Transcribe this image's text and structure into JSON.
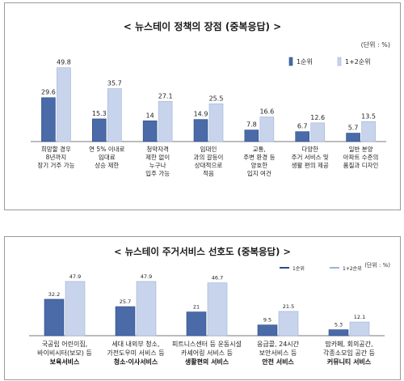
{
  "chart_data": [
    {
      "type": "bar",
      "title": "< 뉴스테이 정책의 장점 (중복응답) >",
      "unit": "(단위 : %)",
      "categories": [
        [
          "희망할 경우",
          "8년까지",
          "장기 거주 가능"
        ],
        [
          "연 5% 이내로",
          "임대료",
          "상승 제한"
        ],
        [
          "청약자격",
          "제한 없이",
          "누구나",
          "입주 가능"
        ],
        [
          "임대인",
          "과의 갈등이",
          "상대적으로",
          "적음"
        ],
        [
          "교통,",
          "주변 환경 등",
          "양호한",
          "입지 여건"
        ],
        [
          "다양한",
          "주거 서비스 및",
          "생활 편의 제공"
        ],
        [
          "일반 분양",
          "아파트 수준의",
          "품질과 디자인"
        ]
      ],
      "series": [
        {
          "name": "1순위",
          "values": [
            29.6,
            15.3,
            14.0,
            14.9,
            7.8,
            6.7,
            5.7
          ]
        },
        {
          "name": "1+2순위",
          "values": [
            49.8,
            35.7,
            27.1,
            25.5,
            16.6,
            12.6,
            13.5
          ]
        }
      ],
      "ylim": [
        0,
        60
      ],
      "legend": "top-right",
      "grid": false
    },
    {
      "type": "bar",
      "title": "< 뉴스테이 주거서비스 선호도 (중복응답) >",
      "unit": "(단위 : %)",
      "categories": [
        {
          "lines": [
            "국공립 어린이집,",
            "바이비시터(보모) 등"
          ],
          "bold": "보육서비스"
        },
        {
          "lines": [
            "세대 내외부 청소,",
            "가전도우미 서비스 등"
          ],
          "bold": "청소·이사서비스"
        },
        {
          "lines": [
            "피트니스센터 등 운동시설",
            "카셰어링 서비스 등"
          ],
          "bold": "생활편의 서비스"
        },
        {
          "lines": [
            "응급콜, 24시간",
            "보안서비스 등"
          ],
          "bold": "안전 서비스"
        },
        {
          "lines": [
            "맘카페, 회의공간,",
            "각종소모임 공간 등"
          ],
          "bold": "커뮤니티 서비스"
        }
      ],
      "series": [
        {
          "name": "1순위",
          "values": [
            32.2,
            25.7,
            21.0,
            9.5,
            5.3
          ]
        },
        {
          "name": "1+2순위",
          "values": [
            47.9,
            47.9,
            46.7,
            21.5,
            12.1
          ]
        }
      ],
      "ylim": [
        0,
        60
      ],
      "legend": "top-right",
      "grid": false
    }
  ],
  "colors": {
    "series1": "#4a6aa8",
    "series1_edge": "#2e4d8a",
    "series2": "#c7d4ec",
    "series2_edge": "#9fb2d8",
    "axis": "#7a7a7a",
    "panel_border": "#9a9a9a"
  }
}
